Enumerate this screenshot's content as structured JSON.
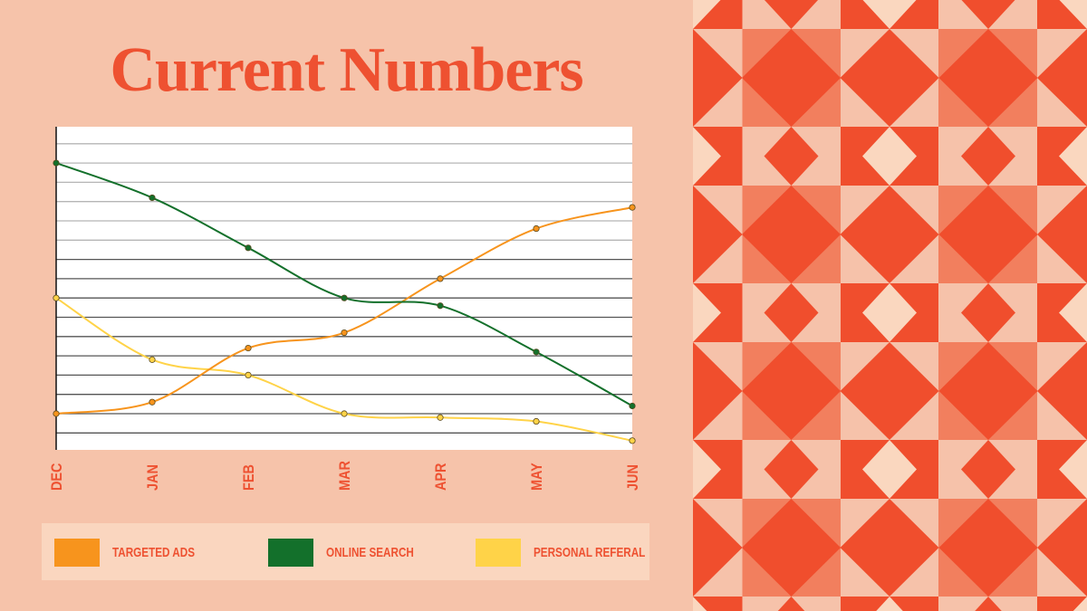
{
  "title": "Current Numbers",
  "colors": {
    "background": "#F6C3AA",
    "accent": "#EE5131",
    "pattern_red": "#F04E2D",
    "pattern_salmon": "#F27F5E",
    "pattern_light": "#FAD7BF",
    "pattern_pink": "#F6C2AA"
  },
  "chart_data": {
    "type": "line",
    "title": "Current Numbers",
    "categories": [
      "DEC",
      "JAN",
      "FEB",
      "MAR",
      "APR",
      "MAY",
      "JUN"
    ],
    "xlabel": "",
    "ylabel": "",
    "ylim": [
      0,
      17
    ],
    "y_tick_labels_shown": false,
    "grid": true,
    "smooth": true,
    "legend_position": "bottom",
    "series": [
      {
        "name": "TARGETED ADS",
        "color": "#F7941D",
        "values": [
          2,
          2.6,
          5.4,
          6.2,
          9,
          11.6,
          12.7
        ]
      },
      {
        "name": "ONLINE SEARCH",
        "color": "#13702B",
        "values": [
          15,
          13.2,
          10.6,
          8,
          7.6,
          5.2,
          2.4
        ]
      },
      {
        "name": "PERSONAL REFERAL",
        "color": "#FFD348",
        "values": [
          8,
          4.8,
          4,
          2,
          1.8,
          1.6,
          0.6
        ]
      }
    ]
  }
}
